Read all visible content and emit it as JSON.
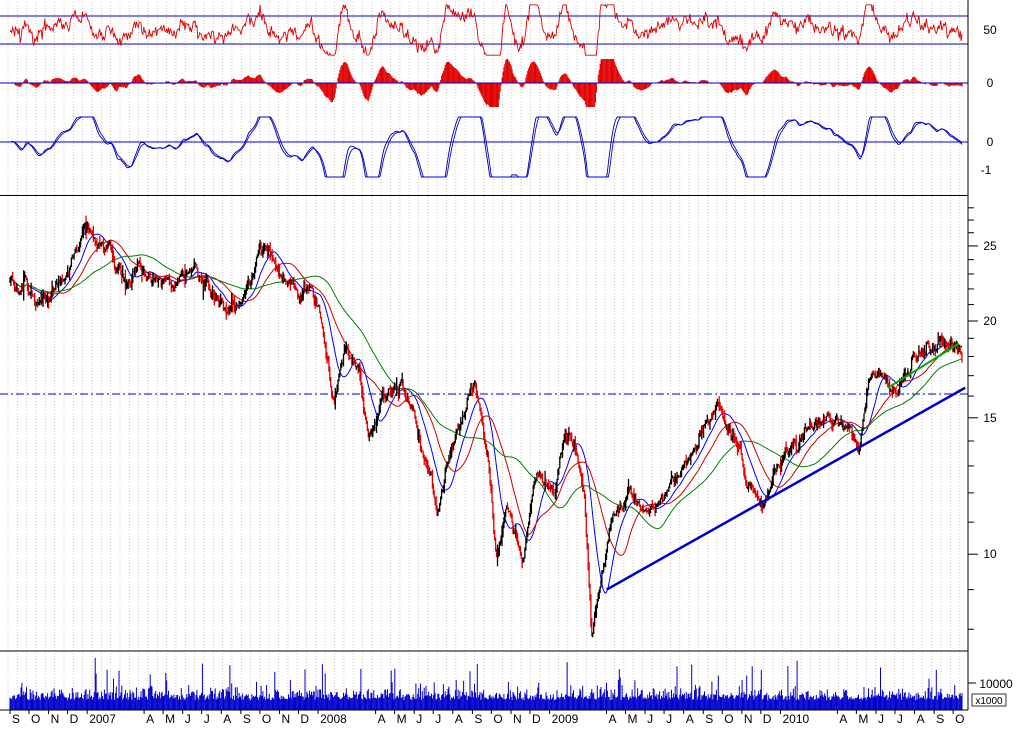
{
  "chart_data": [
    {
      "panel": "oscillator-top",
      "type": "line",
      "series": [
        {
          "color": "#e00000"
        }
      ],
      "hlines": [
        {
          "value": 60,
          "color": "#0000cc"
        },
        {
          "value": 40,
          "color": "#0000cc"
        }
      ],
      "ticks": [
        "50"
      ],
      "ylim": [
        30,
        70
      ]
    },
    {
      "panel": "histogram",
      "type": "bar",
      "series": [
        {
          "color": "#e00000"
        }
      ],
      "hlines": [
        {
          "value": 0,
          "color": "#0000cc"
        }
      ],
      "ticks": [
        "0"
      ]
    },
    {
      "panel": "oscillator-3",
      "type": "line",
      "series": [
        {
          "color": "#000080"
        },
        {
          "color": "#0000ff"
        }
      ],
      "hlines": [
        {
          "value": 0,
          "color": "#0000cc"
        }
      ],
      "ticks": [
        "0",
        "-1"
      ]
    },
    {
      "panel": "price",
      "type": "line",
      "scale": "log",
      "ylim": [
        7.5,
        29
      ],
      "ticks": [
        "25",
        "20",
        "15",
        "10"
      ],
      "hline": {
        "value": 16.1,
        "style": "dash-dot",
        "color": "#0000cc"
      },
      "trendlines": [
        {
          "from": [
            "2009-04-01",
            9.0
          ],
          "to": [
            "2010-10-20",
            16.4
          ],
          "color": "#0000cc"
        },
        {
          "from": [
            "2010-06-20",
            16.4
          ],
          "to": [
            "2010-10-10",
            18.7
          ],
          "color": "#00aa00"
        }
      ],
      "moving_averages": [
        {
          "color": "#0000ff"
        },
        {
          "color": "#cc0000"
        },
        {
          "color": "#008000"
        }
      ],
      "price_series_color": "#e00000",
      "price_anchors": [
        [
          "2006-09-01",
          22.5
        ],
        [
          "2006-10-01",
          22.0
        ],
        [
          "2006-11-01",
          21.2
        ],
        [
          "2006-11-20",
          22.2
        ],
        [
          "2006-12-10",
          24.0
        ],
        [
          "2007-01-01",
          26.0
        ],
        [
          "2007-01-20",
          25.0
        ],
        [
          "2007-02-05",
          25.8
        ],
        [
          "2007-03-05",
          21.8
        ],
        [
          "2007-03-25",
          23.8
        ],
        [
          "2007-04-20",
          23.0
        ],
        [
          "2007-05-15",
          22.5
        ],
        [
          "2007-06-01",
          23.5
        ],
        [
          "2007-06-25",
          23.0
        ],
        [
          "2007-07-15",
          21.5
        ],
        [
          "2007-08-10",
          20.5
        ],
        [
          "2007-09-01",
          21.5
        ],
        [
          "2007-10-01",
          24.0
        ],
        [
          "2007-10-15",
          24.8
        ],
        [
          "2007-11-01",
          22.5
        ],
        [
          "2007-11-20",
          22.0
        ],
        [
          "2007-12-10",
          22.3
        ],
        [
          "2008-01-05",
          20.5
        ],
        [
          "2008-01-25",
          16.0
        ],
        [
          "2008-02-15",
          18.5
        ],
        [
          "2008-03-05",
          17.5
        ],
        [
          "2008-03-20",
          14.0
        ],
        [
          "2008-04-10",
          16.0
        ],
        [
          "2008-05-10",
          16.8
        ],
        [
          "2008-06-01",
          15.0
        ],
        [
          "2008-07-10",
          11.5
        ],
        [
          "2008-08-05",
          14.0
        ],
        [
          "2008-08-25",
          15.5
        ],
        [
          "2008-09-05",
          16.3
        ],
        [
          "2008-09-25",
          13.5
        ],
        [
          "2008-10-10",
          10.0
        ],
        [
          "2008-10-25",
          11.5
        ],
        [
          "2008-11-20",
          9.8
        ],
        [
          "2008-12-10",
          12.5
        ],
        [
          "2009-01-05",
          12.0
        ],
        [
          "2009-01-25",
          14.0
        ],
        [
          "2009-02-10",
          13.8
        ],
        [
          "2009-02-25",
          12.0
        ],
        [
          "2009-03-09",
          8.0
        ],
        [
          "2009-03-25",
          9.8
        ],
        [
          "2009-04-10",
          11.3
        ],
        [
          "2009-05-05",
          12.0
        ],
        [
          "2009-06-01",
          11.3
        ],
        [
          "2009-07-01",
          11.5
        ],
        [
          "2009-08-01",
          13.0
        ],
        [
          "2009-09-05",
          14.5
        ],
        [
          "2009-09-25",
          15.5
        ],
        [
          "2009-10-20",
          14.0
        ],
        [
          "2009-11-10",
          12.0
        ],
        [
          "2009-12-01",
          11.5
        ],
        [
          "2009-12-20",
          12.5
        ],
        [
          "2010-01-20",
          14.0
        ],
        [
          "2010-02-20",
          14.8
        ],
        [
          "2010-03-20",
          15.2
        ],
        [
          "2010-04-20",
          14.5
        ],
        [
          "2010-05-05",
          13.5
        ],
        [
          "2010-05-20",
          16.5
        ],
        [
          "2010-06-10",
          17.0
        ],
        [
          "2010-07-05",
          16.2
        ],
        [
          "2010-08-01",
          18.3
        ],
        [
          "2010-09-01",
          18.8
        ],
        [
          "2010-09-25",
          19.3
        ],
        [
          "2010-10-10",
          18.5
        ],
        [
          "2010-10-15",
          18.3
        ]
      ]
    },
    {
      "panel": "volume",
      "type": "bar",
      "series": [
        {
          "color": "#0000cc"
        }
      ],
      "ticks": [
        "10000"
      ],
      "unit_label": "x1000"
    }
  ],
  "x_axis": {
    "start": "2006-09-01",
    "end": "2010-10-15",
    "labels": [
      {
        "text": "S",
        "date": "2006-09-01"
      },
      {
        "text": "O",
        "date": "2006-10-01"
      },
      {
        "text": "N",
        "date": "2006-11-01"
      },
      {
        "text": "D",
        "date": "2006-12-01"
      },
      {
        "text": "2007",
        "date": "2007-01-01"
      },
      {
        "text": "A",
        "date": "2007-04-01"
      },
      {
        "text": "M",
        "date": "2007-05-01"
      },
      {
        "text": "J",
        "date": "2007-06-01"
      },
      {
        "text": "J",
        "date": "2007-07-01"
      },
      {
        "text": "A",
        "date": "2007-08-01"
      },
      {
        "text": "S",
        "date": "2007-09-01"
      },
      {
        "text": "O",
        "date": "2007-10-01"
      },
      {
        "text": "N",
        "date": "2007-11-01"
      },
      {
        "text": "D",
        "date": "2007-12-01"
      },
      {
        "text": "2008",
        "date": "2008-01-01"
      },
      {
        "text": "A",
        "date": "2008-04-01"
      },
      {
        "text": "M",
        "date": "2008-05-01"
      },
      {
        "text": "J",
        "date": "2008-06-01"
      },
      {
        "text": "J",
        "date": "2008-07-01"
      },
      {
        "text": "A",
        "date": "2008-08-01"
      },
      {
        "text": "S",
        "date": "2008-09-01"
      },
      {
        "text": "O",
        "date": "2008-10-01"
      },
      {
        "text": "N",
        "date": "2008-11-01"
      },
      {
        "text": "D",
        "date": "2008-12-01"
      },
      {
        "text": "2009",
        "date": "2009-01-01"
      },
      {
        "text": "A",
        "date": "2009-04-01"
      },
      {
        "text": "M",
        "date": "2009-05-01"
      },
      {
        "text": "J",
        "date": "2009-06-01"
      },
      {
        "text": "J",
        "date": "2009-07-01"
      },
      {
        "text": "A",
        "date": "2009-08-01"
      },
      {
        "text": "S",
        "date": "2009-09-01"
      },
      {
        "text": "O",
        "date": "2009-10-01"
      },
      {
        "text": "N",
        "date": "2009-11-01"
      },
      {
        "text": "D",
        "date": "2009-12-01"
      },
      {
        "text": "2010",
        "date": "2010-01-01"
      },
      {
        "text": "A",
        "date": "2010-04-01"
      },
      {
        "text": "M",
        "date": "2010-05-01"
      },
      {
        "text": "J",
        "date": "2010-06-01"
      },
      {
        "text": "J",
        "date": "2010-07-01"
      },
      {
        "text": "A",
        "date": "2010-08-01"
      },
      {
        "text": "S",
        "date": "2010-09-01"
      },
      {
        "text": "O",
        "date": "2010-10-01"
      }
    ]
  },
  "colors": {
    "axis": "#000000",
    "gridline": "#b8b8b8",
    "background": "#ffffff"
  }
}
